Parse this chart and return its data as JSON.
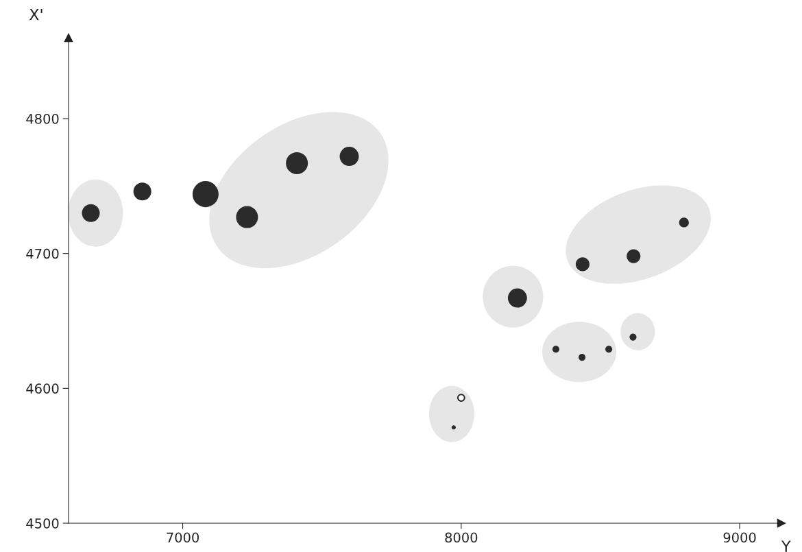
{
  "chart_data": {
    "type": "bubble",
    "xlabel": "Y",
    "ylabel": "X'",
    "xlim": [
      6590,
      9150
    ],
    "ylim": [
      4500,
      4860
    ],
    "xticks": [
      7000,
      8000,
      9000
    ],
    "yticks": [
      4500,
      4600,
      4700,
      4800
    ],
    "grid": false,
    "legend": false,
    "series": [
      {
        "color": "#2b2b2b",
        "x": [
          6670,
          6855,
          7082,
          7231,
          7410,
          7598,
          8202,
          8436,
          8619,
          8800,
          8340,
          8434,
          8530,
          8617,
          7973
        ],
        "values": [
          4730,
          4746,
          4744,
          4727,
          4767,
          4772,
          4667,
          4692,
          4698,
          4723,
          4629,
          4623,
          4629,
          4638,
          4571
        ],
        "sizes": [
          0.47,
          0.47,
          1,
          0.71,
          0.71,
          0.54,
          0.54,
          0.28,
          0.28,
          0.14,
          0.07,
          0.07,
          0.07,
          0.07,
          0.025
        ]
      },
      {
        "type": "scatter",
        "color": "#2b2b2b",
        "x": [
          8000
        ],
        "values": [
          4593
        ],
        "marker": "circle"
      }
    ]
  }
}
